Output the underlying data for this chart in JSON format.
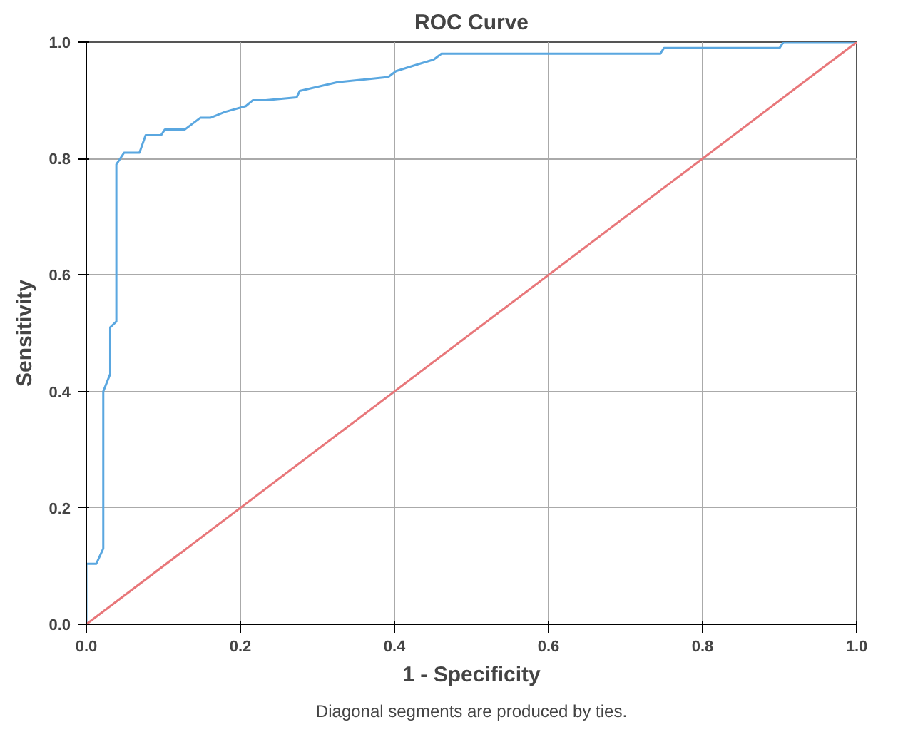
{
  "chart_data": {
    "type": "line",
    "title": "ROC Curve",
    "xlabel": "1 - Specificity",
    "ylabel": "Sensitivity",
    "xlim": [
      0,
      1
    ],
    "ylim": [
      0,
      1
    ],
    "xticks": [
      {
        "value": 0,
        "label": "0.0"
      },
      {
        "value": 0.2,
        "label": "0.2"
      },
      {
        "value": 0.4,
        "label": "0.4"
      },
      {
        "value": 0.6,
        "label": "0.6"
      },
      {
        "value": 0.8,
        "label": "0.8"
      },
      {
        "value": 1,
        "label": "1.0"
      }
    ],
    "yticks": [
      {
        "value": 0,
        "label": "0.0"
      },
      {
        "value": 0.2,
        "label": "0.2"
      },
      {
        "value": 0.4,
        "label": "0.4"
      },
      {
        "value": 0.6,
        "label": "0.6"
      },
      {
        "value": 0.8,
        "label": "0.8"
      },
      {
        "value": 1,
        "label": "1.0"
      }
    ],
    "grid": true,
    "marker": "none",
    "line_style": "solid",
    "series": [
      {
        "color": "#5aa7e0",
        "x": [
          0,
          0,
          0.013,
          0.022,
          0.022,
          0.031,
          0.031,
          0.039,
          0.039,
          0.049,
          0.069,
          0.077,
          0.097,
          0.102,
          0.128,
          0.148,
          0.161,
          0.18,
          0.207,
          0.216,
          0.233,
          0.273,
          0.277,
          0.326,
          0.392,
          0.402,
          0.431,
          0.451,
          0.461,
          0.745,
          0.75,
          0.9,
          0.905,
          1
        ],
        "values": [
          0,
          0.104,
          0.104,
          0.13,
          0.4,
          0.43,
          0.51,
          0.52,
          0.79,
          0.81,
          0.81,
          0.84,
          0.84,
          0.85,
          0.85,
          0.87,
          0.87,
          0.88,
          0.89,
          0.9,
          0.9,
          0.905,
          0.916,
          0.931,
          0.94,
          0.95,
          0.962,
          0.97,
          0.98,
          0.98,
          0.99,
          0.99,
          1,
          1
        ]
      },
      {
        "color": "#e8777a",
        "x": [
          0,
          1
        ],
        "values": [
          0,
          1
        ]
      }
    ],
    "annotations": [
      "Diagonal segments are produced by ties."
    ]
  }
}
